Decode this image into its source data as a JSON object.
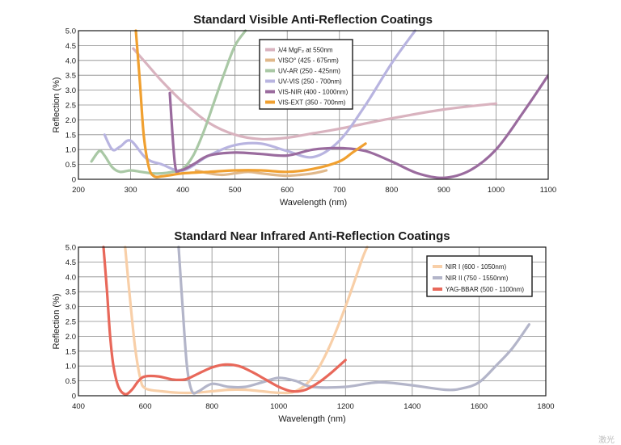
{
  "chart_data": [
    {
      "type": "line",
      "title": "Standard Visible Anti-Reflection Coatings",
      "xlabel": "Wavelength (nm)",
      "ylabel": "Reflection (%)",
      "xlim": [
        200,
        1100
      ],
      "ylim": [
        0,
        5
      ],
      "xticks": [
        200,
        300,
        400,
        500,
        600,
        700,
        800,
        900,
        1000,
        1100
      ],
      "yticks": [
        0,
        0.5,
        1.0,
        1.5,
        2.0,
        2.5,
        3.0,
        3.5,
        4.0,
        4.5,
        5.0
      ],
      "grid": true,
      "legend_position": "top-center",
      "series": [
        {
          "name": "λ/4 MgF₂ at 550nm",
          "color": "#d9b3bf",
          "x": [
            305,
            330,
            360,
            400,
            450,
            500,
            550,
            600,
            650,
            700,
            800,
            900,
            1000
          ],
          "y": [
            4.4,
            3.9,
            3.3,
            2.6,
            1.9,
            1.5,
            1.35,
            1.4,
            1.55,
            1.7,
            2.05,
            2.35,
            2.55
          ]
        },
        {
          "name": "VISO° (425 - 675nm)",
          "color": "#e0b88a",
          "x": [
            425,
            450,
            475,
            500,
            525,
            550,
            575,
            600,
            625,
            650,
            675
          ],
          "y": [
            0.3,
            0.2,
            0.15,
            0.2,
            0.25,
            0.2,
            0.15,
            0.12,
            0.15,
            0.2,
            0.3
          ]
        },
        {
          "name": "UV-AR (250 - 425nm)",
          "color": "#a9c8a5",
          "x": [
            225,
            240,
            250,
            265,
            280,
            300,
            320,
            340,
            360,
            380,
            400,
            420,
            440,
            460,
            480,
            500,
            520
          ],
          "y": [
            0.6,
            0.95,
            0.8,
            0.4,
            0.25,
            0.3,
            0.25,
            0.2,
            0.2,
            0.25,
            0.35,
            0.8,
            1.6,
            2.6,
            3.6,
            4.5,
            5.0
          ]
        },
        {
          "name": "UV-VIS (250 - 700nm)",
          "color": "#b8b4e0",
          "x": [
            250,
            265,
            280,
            300,
            330,
            360,
            400,
            450,
            500,
            550,
            600,
            650,
            700,
            750,
            800,
            845
          ],
          "y": [
            1.5,
            1.0,
            1.1,
            1.3,
            0.7,
            0.5,
            0.3,
            0.8,
            1.15,
            1.2,
            0.95,
            0.75,
            1.3,
            2.5,
            3.9,
            5.0
          ]
        },
        {
          "name": "VIS-NIR (400 - 1000nm)",
          "color": "#9a6b9e",
          "x": [
            375,
            385,
            395,
            420,
            450,
            500,
            550,
            600,
            650,
            700,
            750,
            800,
            850,
            900,
            950,
            1000,
            1050,
            1100
          ],
          "y": [
            2.9,
            0.5,
            0.3,
            0.5,
            0.8,
            0.9,
            0.85,
            0.8,
            1.0,
            1.05,
            0.95,
            0.6,
            0.2,
            0.05,
            0.3,
            1.0,
            2.2,
            3.5
          ]
        },
        {
          "name": "VIS-EXT (350 - 700nm)",
          "color": "#f0a030",
          "x": [
            310,
            318,
            325,
            335,
            345,
            360,
            380,
            400,
            450,
            500,
            550,
            600,
            650,
            700,
            725,
            750
          ],
          "y": [
            5.0,
            3.2,
            1.5,
            0.4,
            0.1,
            0.1,
            0.15,
            0.2,
            0.25,
            0.3,
            0.3,
            0.25,
            0.35,
            0.6,
            0.9,
            1.2
          ]
        }
      ]
    },
    {
      "type": "line",
      "title": "Standard Near Infrared Anti-Reflection Coatings",
      "xlabel": "Wavelength (nm)",
      "ylabel": "Reflection (%)",
      "xlim": [
        400,
        1800
      ],
      "ylim": [
        0,
        5
      ],
      "xticks": [
        400,
        600,
        800,
        1000,
        1200,
        1400,
        1600,
        1800
      ],
      "yticks": [
        0,
        0.5,
        1.0,
        1.5,
        2.0,
        2.5,
        3.0,
        3.5,
        4.0,
        4.5,
        5.0
      ],
      "grid": true,
      "legend_position": "top-right",
      "series": [
        {
          "name": "NIR I (600 - 1050nm)",
          "color": "#f8cfa8",
          "x": [
            540,
            555,
            570,
            585,
            600,
            650,
            700,
            750,
            800,
            850,
            900,
            950,
            1000,
            1050,
            1100,
            1150,
            1200,
            1250,
            1265
          ],
          "y": [
            5.0,
            3.2,
            1.6,
            0.6,
            0.25,
            0.15,
            0.1,
            0.1,
            0.15,
            0.2,
            0.2,
            0.15,
            0.1,
            0.15,
            0.6,
            1.6,
            3.0,
            4.6,
            5.0
          ]
        },
        {
          "name": "NIR II (750 - 1550nm)",
          "color": "#b3b5c9",
          "x": [
            700,
            712,
            725,
            740,
            760,
            800,
            850,
            900,
            950,
            1000,
            1050,
            1100,
            1200,
            1300,
            1400,
            1500,
            1550,
            1600,
            1650,
            1700,
            1750
          ],
          "y": [
            5.0,
            3.0,
            1.0,
            0.15,
            0.15,
            0.4,
            0.3,
            0.3,
            0.45,
            0.6,
            0.5,
            0.3,
            0.3,
            0.45,
            0.35,
            0.2,
            0.25,
            0.45,
            1.0,
            1.6,
            2.4
          ]
        },
        {
          "name": "YAG-BBAR (500 - 1100nm)",
          "color": "#e8685a",
          "x": [
            475,
            485,
            495,
            505,
            520,
            540,
            560,
            580,
            600,
            640,
            680,
            720,
            760,
            800,
            840,
            880,
            920,
            960,
            1000,
            1040,
            1080,
            1120,
            1160,
            1200
          ],
          "y": [
            5.0,
            3.6,
            2.0,
            1.0,
            0.3,
            0.05,
            0.2,
            0.5,
            0.65,
            0.65,
            0.55,
            0.55,
            0.75,
            0.95,
            1.05,
            1.0,
            0.8,
            0.55,
            0.3,
            0.15,
            0.2,
            0.45,
            0.8,
            1.2
          ]
        }
      ]
    }
  ],
  "watermark": "激光"
}
